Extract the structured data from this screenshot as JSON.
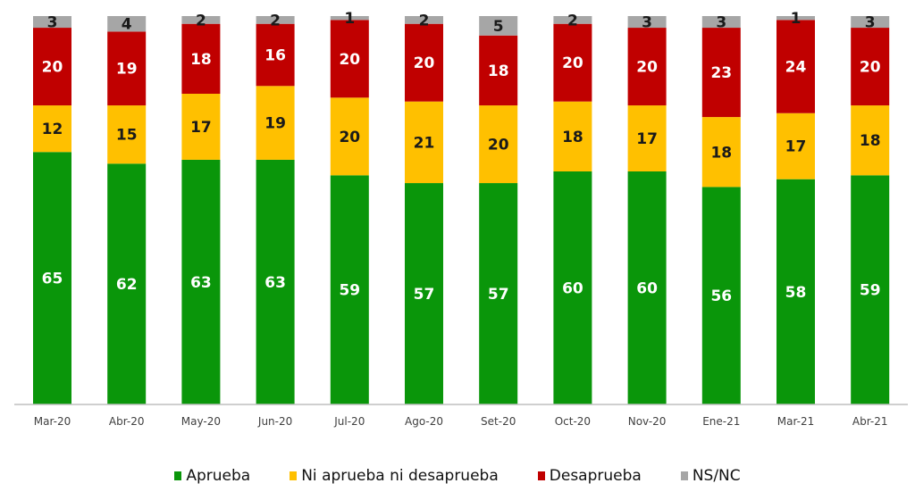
{
  "chart_data": {
    "type": "bar",
    "stacked": true,
    "title": "",
    "xlabel": "",
    "ylabel": "",
    "ylim": [
      0,
      100
    ],
    "grid": false,
    "legend_position": "bottom",
    "categories": [
      "Mar-20",
      "Abr-20",
      "May-20",
      "Jun-20",
      "Jul-20",
      "Ago-20",
      "Set-20",
      "Oct-20",
      "Nov-20",
      "Ene-21",
      "Mar-21",
      "Abr-21"
    ],
    "series": [
      {
        "name": "Aprueba",
        "color": "#0a960a",
        "label_color": "#ffffff",
        "values": [
          65,
          62,
          63,
          63,
          59,
          57,
          57,
          60,
          60,
          56,
          58,
          59
        ]
      },
      {
        "name": "Ni aprueba ni desaprueba",
        "color": "#ffc000",
        "label_color": "#1a1a1a",
        "values": [
          12,
          15,
          17,
          19,
          20,
          21,
          20,
          18,
          17,
          18,
          17,
          18
        ]
      },
      {
        "name": "Desaprueba",
        "color": "#c00000",
        "label_color": "#ffffff",
        "values": [
          20,
          19,
          18,
          16,
          20,
          20,
          18,
          20,
          20,
          23,
          24,
          20
        ]
      },
      {
        "name": "NS/NC",
        "color": "#a6a6a6",
        "label_color": "#1a1a1a",
        "values": [
          3,
          4,
          2,
          2,
          1,
          2,
          5,
          2,
          3,
          3,
          1,
          3
        ]
      }
    ]
  }
}
